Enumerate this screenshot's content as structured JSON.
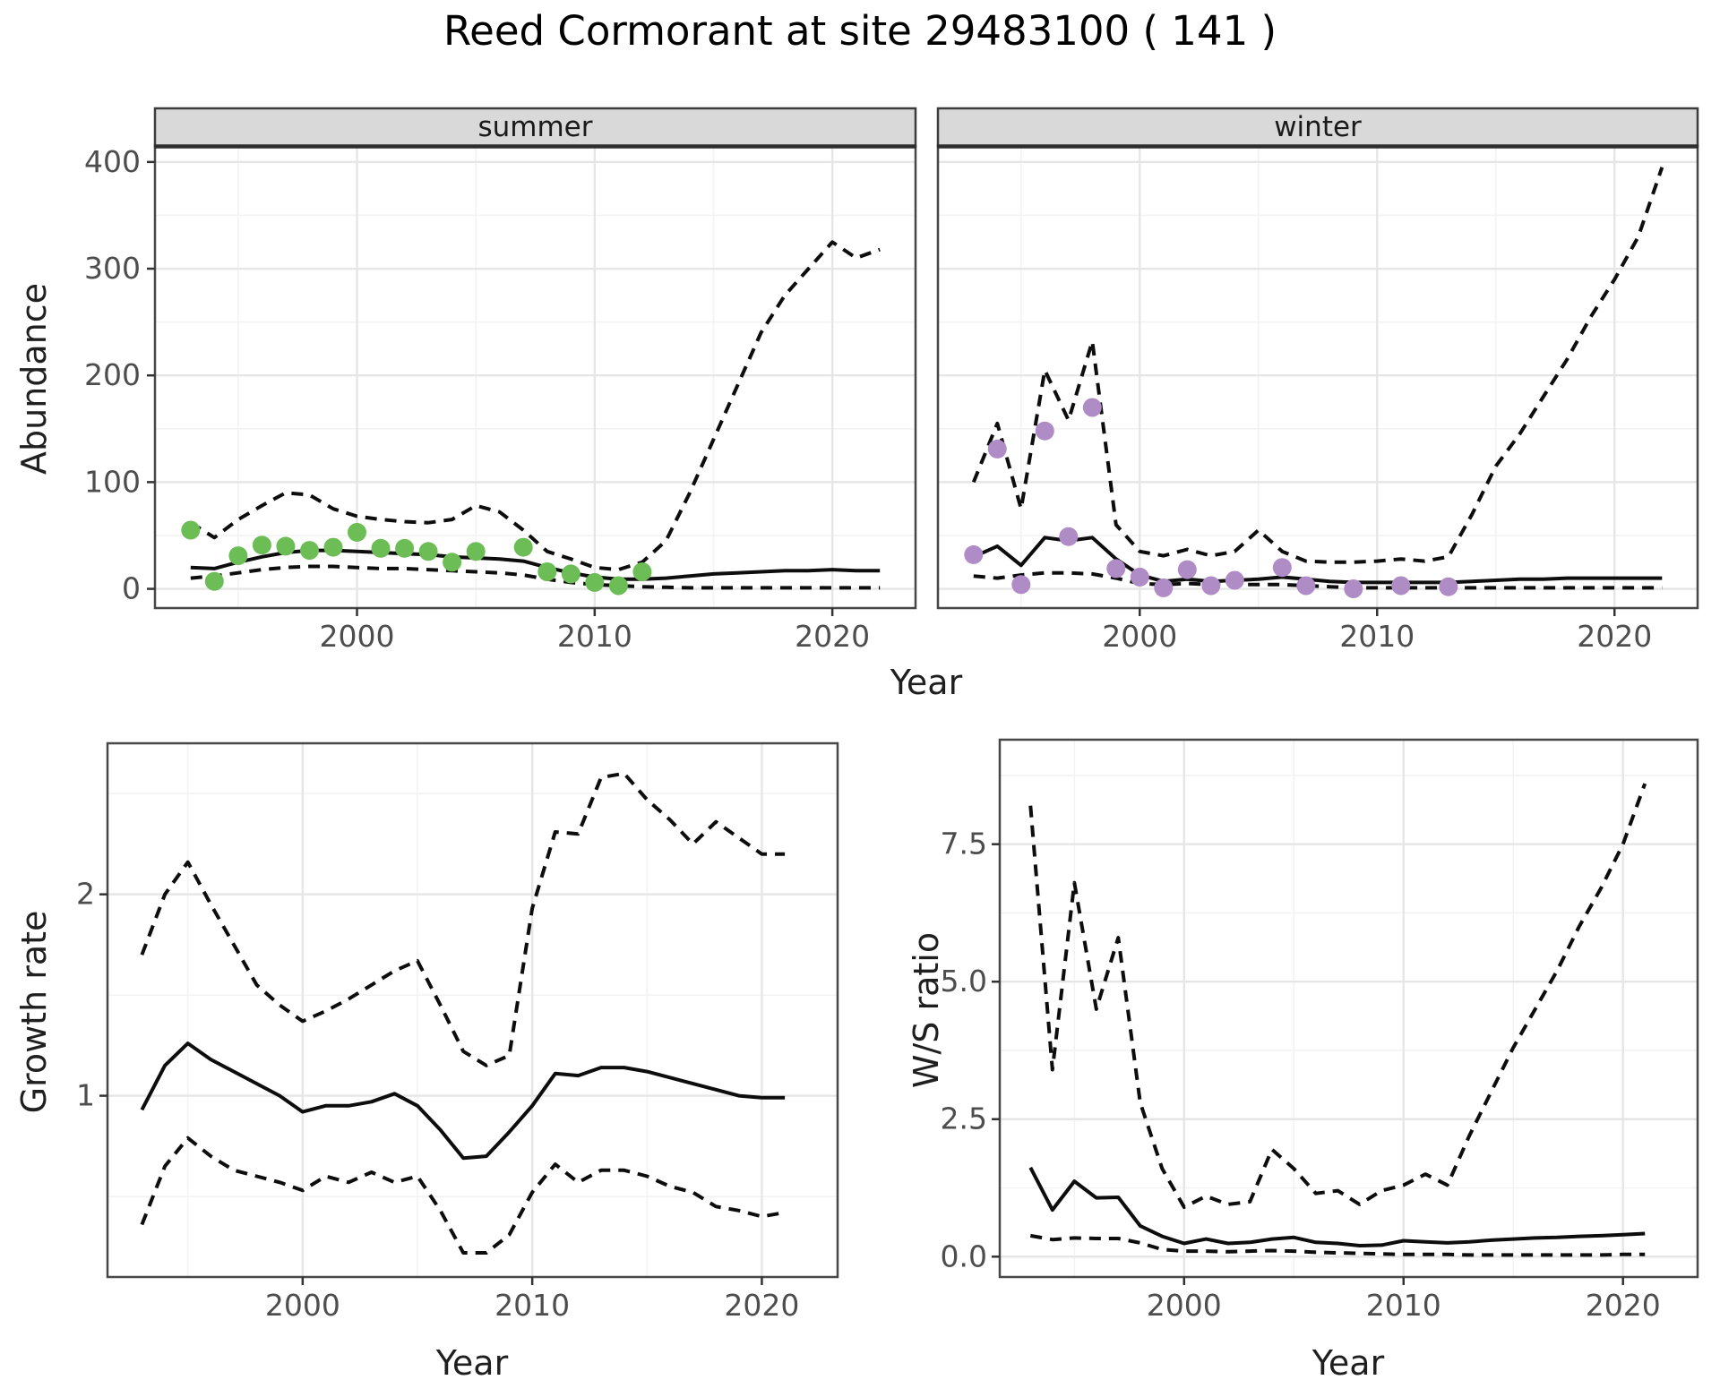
{
  "title": "Reed Cormorant at site 29483100 ( 141 )",
  "colors": {
    "summer_points": "#6dbd57",
    "winter_points": "#b08cc7",
    "line": "#0d0d0d",
    "grid_major": "#e6e6e6",
    "grid_minor": "#f3f3f3",
    "strip_fill": "#d9d9d9",
    "strip_border": "#3c3c3c",
    "panel_border": "#474747",
    "tick_mark": "#333333",
    "tick_label": "#4d4d4d"
  },
  "chart_data": [
    {
      "type": "line",
      "panel": "abundance_summer",
      "facet_label": "summer",
      "xlabel": "Year",
      "ylabel": "Abundance",
      "xlim": [
        1991.5,
        2023.5
      ],
      "ylim": [
        -18,
        415
      ],
      "x_ticks": [
        2000,
        2010,
        2020
      ],
      "x_tick_labels": [
        "2000",
        "2010",
        "2020"
      ],
      "x_minor": [
        1995,
        2005,
        2015
      ],
      "y_ticks": [
        0,
        100,
        200,
        300,
        400
      ],
      "y_tick_labels": [
        "0",
        "100",
        "200",
        "300",
        "400"
      ],
      "y_minor": [
        50,
        150,
        250,
        350
      ],
      "series": [
        {
          "name": "median",
          "style": "solid",
          "x": [
            1993,
            1994,
            1995,
            1996,
            1997,
            1998,
            1999,
            2000,
            2001,
            2002,
            2003,
            2004,
            2005,
            2006,
            2007,
            2008,
            2009,
            2010,
            2011,
            2012,
            2013,
            2014,
            2015,
            2016,
            2017,
            2018,
            2019,
            2020,
            2021,
            2022
          ],
          "y": [
            20,
            19,
            25,
            30,
            34,
            36,
            36,
            35,
            34,
            33,
            32,
            30,
            29,
            28,
            26,
            20,
            15,
            11,
            9,
            9,
            10,
            12,
            14,
            15,
            16,
            17,
            17,
            18,
            17,
            17
          ]
        },
        {
          "name": "upper_ci",
          "style": "dashed",
          "x": [
            1993,
            1994,
            1995,
            1996,
            1997,
            1998,
            1999,
            2000,
            2001,
            2002,
            2003,
            2004,
            2005,
            2006,
            2007,
            2008,
            2009,
            2010,
            2011,
            2012,
            2013,
            2014,
            2015,
            2016,
            2017,
            2018,
            2019,
            2020,
            2021,
            2022
          ],
          "y": [
            62,
            48,
            65,
            78,
            90,
            88,
            75,
            68,
            65,
            63,
            62,
            65,
            78,
            72,
            55,
            35,
            28,
            20,
            18,
            25,
            45,
            90,
            140,
            190,
            240,
            275,
            300,
            325,
            310,
            318
          ]
        },
        {
          "name": "lower_ci",
          "style": "dashed",
          "x": [
            1993,
            1994,
            1995,
            1996,
            1997,
            1998,
            1999,
            2000,
            2001,
            2002,
            2003,
            2004,
            2005,
            2006,
            2007,
            2008,
            2009,
            2010,
            2011,
            2012,
            2013,
            2014,
            2015,
            2016,
            2017,
            2018,
            2019,
            2020,
            2021,
            2022
          ],
          "y": [
            10,
            12,
            15,
            18,
            20,
            21,
            21,
            20,
            19,
            19,
            18,
            17,
            16,
            15,
            13,
            9,
            6,
            4,
            3,
            2,
            1.5,
            1,
            1,
            1,
            1,
            1,
            1,
            1,
            1,
            1
          ]
        }
      ],
      "points": {
        "name": "observed_counts",
        "color": "#6dbd57",
        "x": [
          1993,
          1994,
          1995,
          1996,
          1997,
          1998,
          1999,
          2000,
          2001,
          2002,
          2003,
          2004,
          2005,
          2007,
          2008,
          2009,
          2010,
          2011,
          2012
        ],
        "y": [
          55,
          7,
          31,
          41,
          40,
          36,
          39,
          53,
          38,
          38,
          35,
          25,
          35,
          39,
          16,
          14,
          6,
          3,
          16
        ]
      }
    },
    {
      "type": "line",
      "panel": "abundance_winter",
      "facet_label": "winter",
      "xlabel": "Year",
      "ylabel": "Abundance",
      "xlim": [
        1991.5,
        2023.5
      ],
      "ylim": [
        -18,
        415
      ],
      "x_ticks": [
        2000,
        2010,
        2020
      ],
      "x_tick_labels": [
        "2000",
        "2010",
        "2020"
      ],
      "x_minor": [
        1995,
        2005,
        2015
      ],
      "y_ticks": [
        0,
        100,
        200,
        300,
        400
      ],
      "y_minor": [
        50,
        150,
        250,
        350
      ],
      "series": [
        {
          "name": "median",
          "style": "solid",
          "x": [
            1993,
            1994,
            1995,
            1996,
            1997,
            1998,
            1999,
            2000,
            2001,
            2002,
            2003,
            2004,
            2005,
            2006,
            2007,
            2008,
            2009,
            2010,
            2011,
            2012,
            2013,
            2014,
            2015,
            2016,
            2017,
            2018,
            2019,
            2020,
            2021,
            2022
          ],
          "y": [
            30,
            40,
            22,
            48,
            45,
            48,
            28,
            13,
            7,
            9,
            7,
            8,
            9,
            11,
            9,
            7,
            6,
            6,
            6,
            6,
            6,
            7,
            8,
            9,
            9,
            10,
            10,
            10,
            10,
            10
          ]
        },
        {
          "name": "upper_ci",
          "style": "dashed",
          "x": [
            1993,
            1994,
            1995,
            1996,
            1997,
            1998,
            1999,
            2000,
            2001,
            2002,
            2003,
            2004,
            2005,
            2006,
            2007,
            2008,
            2009,
            2010,
            2011,
            2012,
            2013,
            2014,
            2015,
            2016,
            2017,
            2018,
            2019,
            2020,
            2021,
            2022
          ],
          "y": [
            100,
            155,
            75,
            205,
            158,
            232,
            60,
            35,
            31,
            37,
            31,
            35,
            55,
            35,
            26,
            25,
            25,
            26,
            28,
            26,
            30,
            70,
            115,
            145,
            180,
            215,
            255,
            290,
            330,
            395
          ]
        },
        {
          "name": "lower_ci",
          "style": "dashed",
          "x": [
            1993,
            1994,
            1995,
            1996,
            1997,
            1998,
            1999,
            2000,
            2001,
            2002,
            2003,
            2004,
            2005,
            2006,
            2007,
            2008,
            2009,
            2010,
            2011,
            2012,
            2013,
            2014,
            2015,
            2016,
            2017,
            2018,
            2019,
            2020,
            2021,
            2022
          ],
          "y": [
            12,
            10,
            13,
            15,
            15,
            14,
            10,
            5,
            4,
            5,
            4,
            4,
            4,
            4,
            3,
            2,
            1,
            1,
            1,
            1,
            1,
            1,
            1,
            1,
            1,
            1,
            1,
            1,
            1,
            1
          ]
        }
      ],
      "points": {
        "name": "observed_counts",
        "color": "#b08cc7",
        "x": [
          1993,
          1994,
          1995,
          1996,
          1997,
          1998,
          1999,
          2000,
          2001,
          2002,
          2003,
          2004,
          2006,
          2007,
          2009,
          2011,
          2013
        ],
        "y": [
          32,
          131,
          4,
          148,
          49,
          170,
          19,
          11,
          1,
          18,
          3,
          8,
          20,
          3,
          0,
          3,
          2
        ]
      }
    },
    {
      "type": "line",
      "panel": "growth_rate",
      "xlabel": "Year",
      "ylabel": "Growth rate",
      "xlim": [
        1991.5,
        2023.3
      ],
      "ylim": [
        0.1,
        2.75
      ],
      "x_ticks": [
        2000,
        2010,
        2020
      ],
      "x_tick_labels": [
        "2000",
        "2010",
        "2020"
      ],
      "x_minor": [
        1995,
        2005,
        2015
      ],
      "y_ticks": [
        1,
        2
      ],
      "y_tick_labels": [
        "1",
        "2"
      ],
      "y_minor": [
        0.5,
        1.5,
        2.5
      ],
      "series": [
        {
          "name": "median",
          "style": "solid",
          "x": [
            1993,
            1994,
            1995,
            1996,
            1997,
            1998,
            1999,
            2000,
            2001,
            2002,
            2003,
            2004,
            2005,
            2006,
            2007,
            2008,
            2009,
            2010,
            2011,
            2012,
            2013,
            2014,
            2015,
            2016,
            2017,
            2018,
            2019,
            2020,
            2021
          ],
          "y": [
            0.93,
            1.15,
            1.26,
            1.18,
            1.12,
            1.06,
            1.0,
            0.92,
            0.95,
            0.95,
            0.97,
            1.01,
            0.95,
            0.83,
            0.69,
            0.7,
            0.82,
            0.95,
            1.11,
            1.1,
            1.14,
            1.14,
            1.12,
            1.09,
            1.06,
            1.03,
            1.0,
            0.99,
            0.99
          ]
        },
        {
          "name": "upper_ci",
          "style": "dashed",
          "x": [
            1993,
            1994,
            1995,
            1996,
            1997,
            1998,
            1999,
            2000,
            2001,
            2002,
            2003,
            2004,
            2005,
            2006,
            2007,
            2008,
            2009,
            2010,
            2011,
            2012,
            2013,
            2014,
            2015,
            2016,
            2017,
            2018,
            2019,
            2020,
            2021
          ],
          "y": [
            1.7,
            2.0,
            2.16,
            1.95,
            1.75,
            1.55,
            1.45,
            1.37,
            1.42,
            1.48,
            1.55,
            1.62,
            1.67,
            1.45,
            1.22,
            1.15,
            1.2,
            1.93,
            2.31,
            2.3,
            2.58,
            2.6,
            2.47,
            2.37,
            2.25,
            2.36,
            2.28,
            2.2,
            2.2
          ]
        },
        {
          "name": "lower_ci",
          "style": "dashed",
          "x": [
            1993,
            1994,
            1995,
            1996,
            1997,
            1998,
            1999,
            2000,
            2001,
            2002,
            2003,
            2004,
            2005,
            2006,
            2007,
            2008,
            2009,
            2010,
            2011,
            2012,
            2013,
            2014,
            2015,
            2016,
            2017,
            2018,
            2019,
            2020,
            2021
          ],
          "y": [
            0.36,
            0.65,
            0.79,
            0.7,
            0.63,
            0.6,
            0.57,
            0.53,
            0.6,
            0.57,
            0.62,
            0.57,
            0.6,
            0.43,
            0.22,
            0.22,
            0.31,
            0.52,
            0.66,
            0.57,
            0.63,
            0.63,
            0.6,
            0.55,
            0.52,
            0.45,
            0.43,
            0.4,
            0.42
          ]
        }
      ]
    },
    {
      "type": "line",
      "panel": "ws_ratio",
      "xlabel": "Year",
      "ylabel": "W/S ratio",
      "xlim": [
        1991.6,
        2023.4
      ],
      "ylim": [
        -0.37,
        9.4
      ],
      "x_ticks": [
        2000,
        2010,
        2020
      ],
      "x_tick_labels": [
        "2000",
        "2010",
        "2020"
      ],
      "x_minor": [
        1995,
        2005,
        2015
      ],
      "y_ticks": [
        0,
        2.5,
        5,
        7.5
      ],
      "y_tick_labels": [
        "0.0",
        "2.5",
        "5.0",
        "7.5"
      ],
      "y_minor": [
        1.25,
        3.75,
        6.25,
        8.75
      ],
      "series": [
        {
          "name": "median",
          "style": "solid",
          "x": [
            1993,
            1994,
            1995,
            1996,
            1997,
            1998,
            1999,
            2000,
            2001,
            2002,
            2003,
            2004,
            2005,
            2006,
            2007,
            2008,
            2009,
            2010,
            2011,
            2012,
            2013,
            2014,
            2015,
            2016,
            2017,
            2018,
            2019,
            2020,
            2021
          ],
          "y": [
            1.62,
            0.85,
            1.37,
            1.07,
            1.08,
            0.56,
            0.37,
            0.24,
            0.32,
            0.24,
            0.26,
            0.32,
            0.35,
            0.26,
            0.24,
            0.2,
            0.21,
            0.29,
            0.27,
            0.25,
            0.27,
            0.3,
            0.32,
            0.34,
            0.35,
            0.37,
            0.38,
            0.4,
            0.42
          ]
        },
        {
          "name": "upper_ci",
          "style": "dashed",
          "x": [
            1993,
            1994,
            1995,
            1996,
            1997,
            1998,
            1999,
            2000,
            2001,
            2002,
            2003,
            2004,
            2005,
            2006,
            2007,
            2008,
            2009,
            2010,
            2011,
            2012,
            2013,
            2014,
            2015,
            2016,
            2017,
            2018,
            2019,
            2020,
            2021
          ],
          "y": [
            8.2,
            3.4,
            6.8,
            4.5,
            5.8,
            2.8,
            1.6,
            0.9,
            1.1,
            0.95,
            1.0,
            1.95,
            1.6,
            1.15,
            1.2,
            0.95,
            1.2,
            1.3,
            1.5,
            1.3,
            2.2,
            3.0,
            3.8,
            4.5,
            5.2,
            6.0,
            6.7,
            7.5,
            8.6
          ]
        },
        {
          "name": "lower_ci",
          "style": "dashed",
          "x": [
            1993,
            1994,
            1995,
            1996,
            1997,
            1998,
            1999,
            2000,
            2001,
            2002,
            2003,
            2004,
            2005,
            2006,
            2007,
            2008,
            2009,
            2010,
            2011,
            2012,
            2013,
            2014,
            2015,
            2016,
            2017,
            2018,
            2019,
            2020,
            2021
          ],
          "y": [
            0.38,
            0.31,
            0.34,
            0.33,
            0.33,
            0.25,
            0.13,
            0.1,
            0.1,
            0.09,
            0.1,
            0.11,
            0.1,
            0.08,
            0.07,
            0.06,
            0.05,
            0.04,
            0.04,
            0.04,
            0.03,
            0.03,
            0.03,
            0.03,
            0.03,
            0.03,
            0.03,
            0.04,
            0.04
          ]
        }
      ]
    }
  ]
}
